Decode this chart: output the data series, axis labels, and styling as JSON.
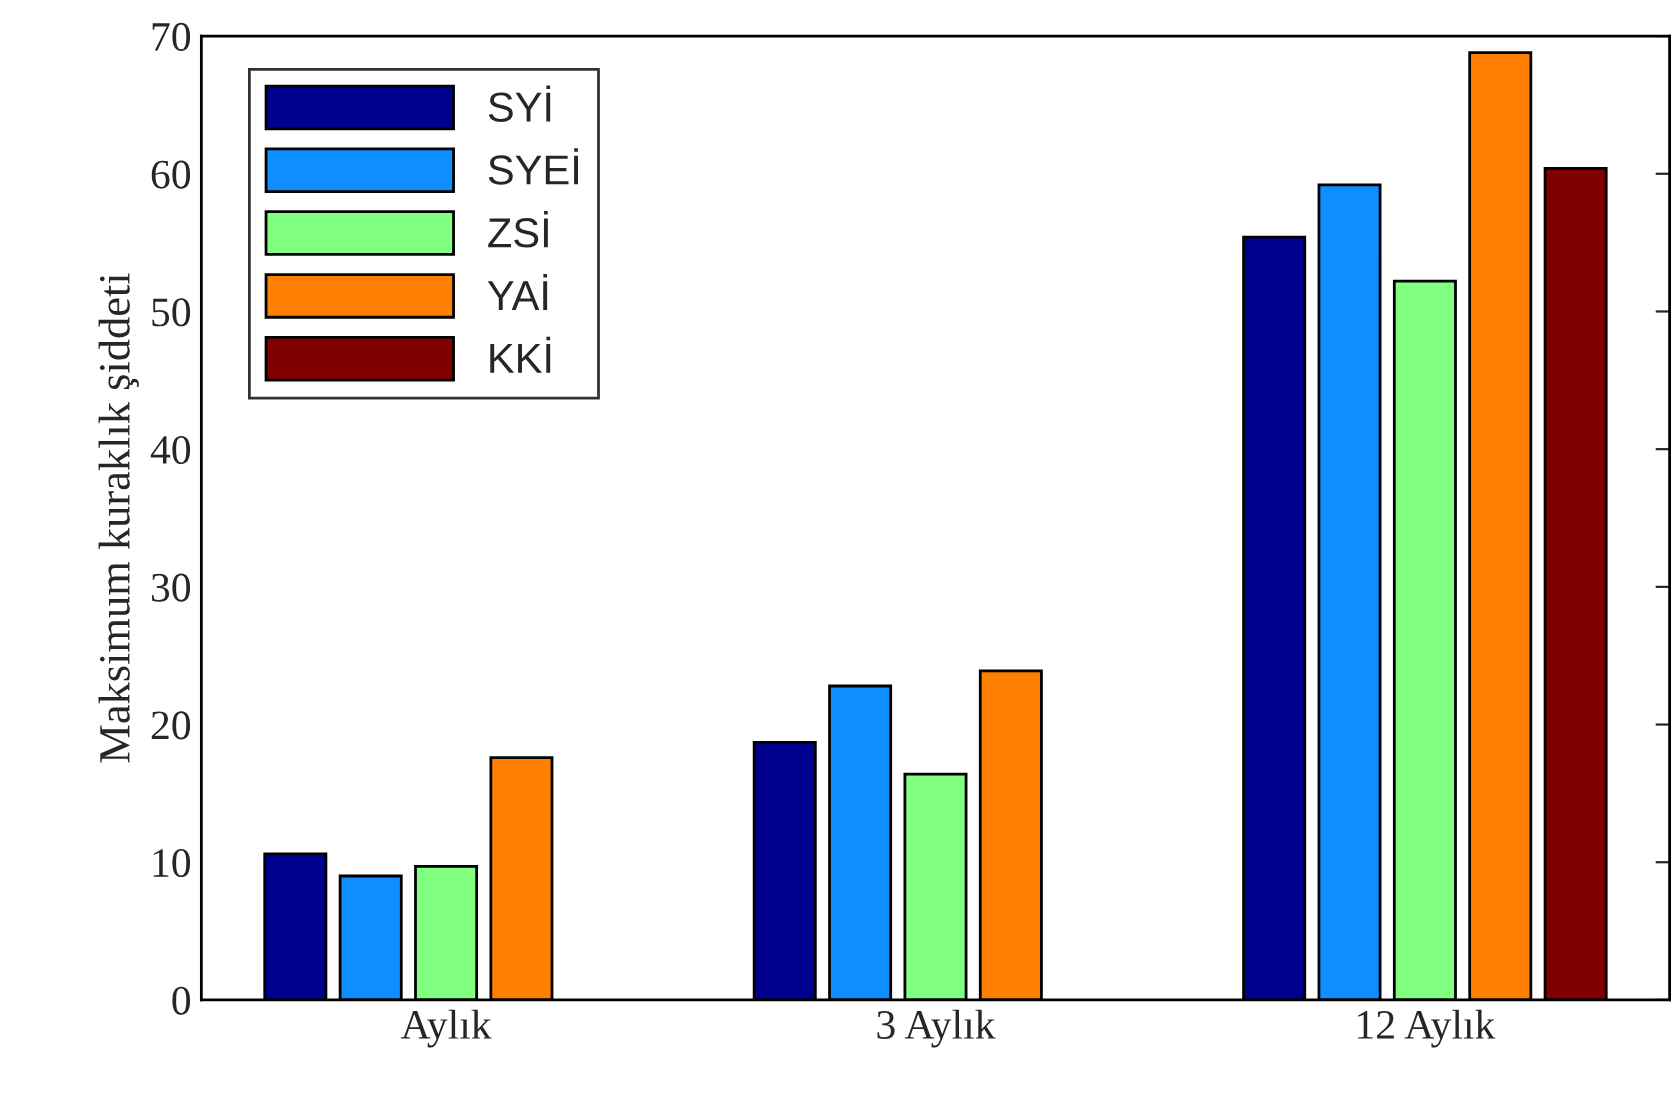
{
  "chart_data": {
    "type": "bar",
    "ylabel": "Maksimum kuraklık şiddeti",
    "categories": [
      "Aylık",
      "3 Aylık",
      "12 Aylık"
    ],
    "series": [
      {
        "name": "SYİ",
        "color": "#00008f",
        "values": [
          10.6,
          18.7,
          55.4
        ]
      },
      {
        "name": "SYEİ",
        "color": "#0f8fff",
        "values": [
          9.0,
          22.8,
          59.2
        ]
      },
      {
        "name": "ZSİ",
        "color": "#80ff80",
        "values": [
          9.7,
          16.4,
          52.2
        ]
      },
      {
        "name": "YAİ",
        "color": "#ff7f00",
        "values": [
          17.6,
          23.9,
          68.8
        ]
      },
      {
        "name": "KKİ",
        "color": "#800000",
        "values": [
          null,
          null,
          60.4
        ]
      }
    ],
    "ylim": [
      0,
      70
    ],
    "yticks": [
      0,
      10,
      20,
      30,
      40,
      50,
      60,
      70
    ],
    "grid": false,
    "legend": "top left"
  }
}
